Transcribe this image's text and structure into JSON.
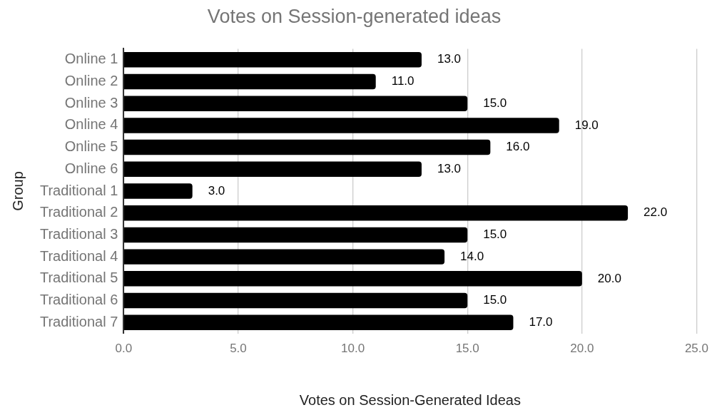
{
  "chart_data": {
    "type": "bar",
    "orientation": "horizontal",
    "title": "Votes on Session-generated ideas",
    "xlabel": "Votes on Session-Generated Ideas",
    "ylabel": "Group",
    "categories": [
      "Online 1",
      "Online 2",
      "Online 3",
      "Online 4",
      "Online 5",
      "Online 6",
      "Traditional 1",
      "Traditional 2",
      "Traditional 3",
      "Traditional 4",
      "Traditional 5",
      "Traditional 6",
      "Traditional 7"
    ],
    "values": [
      13,
      11,
      15,
      19,
      16,
      13,
      3,
      22,
      15,
      14,
      20,
      15,
      17
    ],
    "value_labels": [
      "13.0",
      "11.0",
      "15.0",
      "19.0",
      "16.0",
      "13.0",
      "3.0",
      "22.0",
      "15.0",
      "14.0",
      "20.0",
      "15.0",
      "17.0"
    ],
    "color": "#000000",
    "xlim": [
      0,
      25
    ],
    "xticks": [
      {
        "value": 0,
        "label": "0.0"
      },
      {
        "value": 5,
        "label": "5.0"
      },
      {
        "value": 10,
        "label": "10.0"
      },
      {
        "value": 15,
        "label": "15.0"
      },
      {
        "value": 20,
        "label": "20.0"
      },
      {
        "value": 25,
        "label": "25.0"
      }
    ],
    "grid": "x",
    "legend": false
  }
}
